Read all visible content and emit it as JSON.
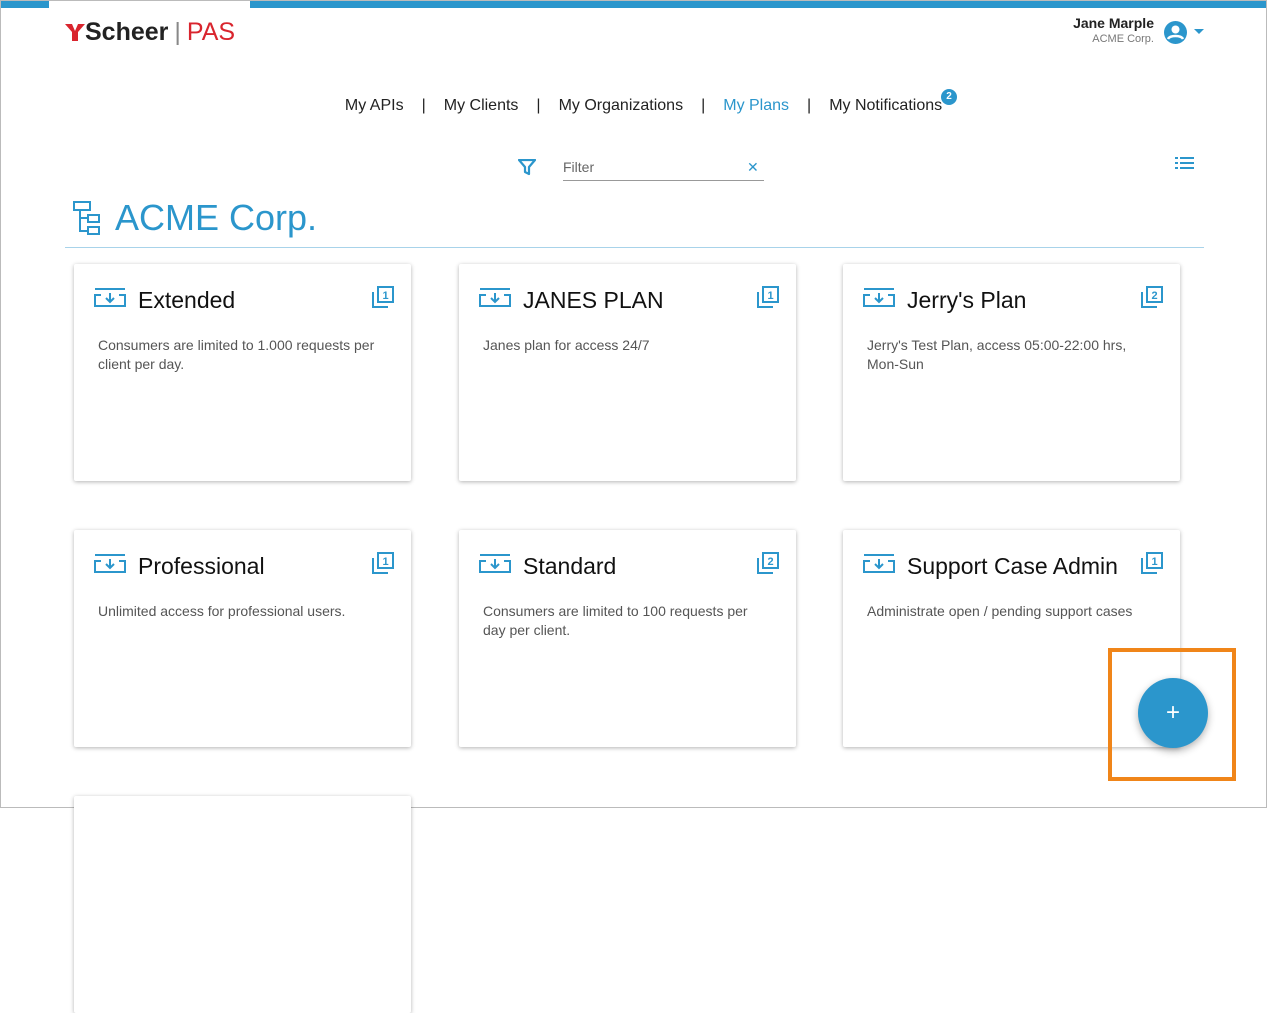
{
  "logo": {
    "brand": "Scheer",
    "product": "PAS"
  },
  "user": {
    "name": "Jane Marple",
    "org": "ACME Corp."
  },
  "nav": {
    "items": [
      "My APIs",
      "My Clients",
      "My Organizations",
      "My Plans",
      "My Notifications"
    ],
    "active": "My Plans",
    "notifications_badge": "2"
  },
  "filter": {
    "placeholder": "Filter",
    "value": ""
  },
  "org": {
    "title": "ACME Corp."
  },
  "plans": [
    {
      "title": "Extended",
      "count": "1",
      "description": "Consumers are limited to 1.000 requests per client per day."
    },
    {
      "title": "JANES PLAN",
      "count": "1",
      "description": "Janes plan for access 24/7"
    },
    {
      "title": "Jerry's Plan",
      "count": "2",
      "description": "Jerry's Test Plan, access 05:00-22:00 hrs, Mon-Sun"
    },
    {
      "title": "Professional",
      "count": "1",
      "description": "Unlimited access for professional users."
    },
    {
      "title": "Standard",
      "count": "2",
      "description": "Consumers are limited to 100 requests per day per client."
    },
    {
      "title": "Support Case Admin",
      "count": "1",
      "description": "Administrate open / pending support cases"
    }
  ],
  "fab": {
    "label": "+"
  },
  "colors": {
    "accent": "#2b96cc",
    "highlight": "#f08519",
    "brand_red": "#d9252e"
  }
}
